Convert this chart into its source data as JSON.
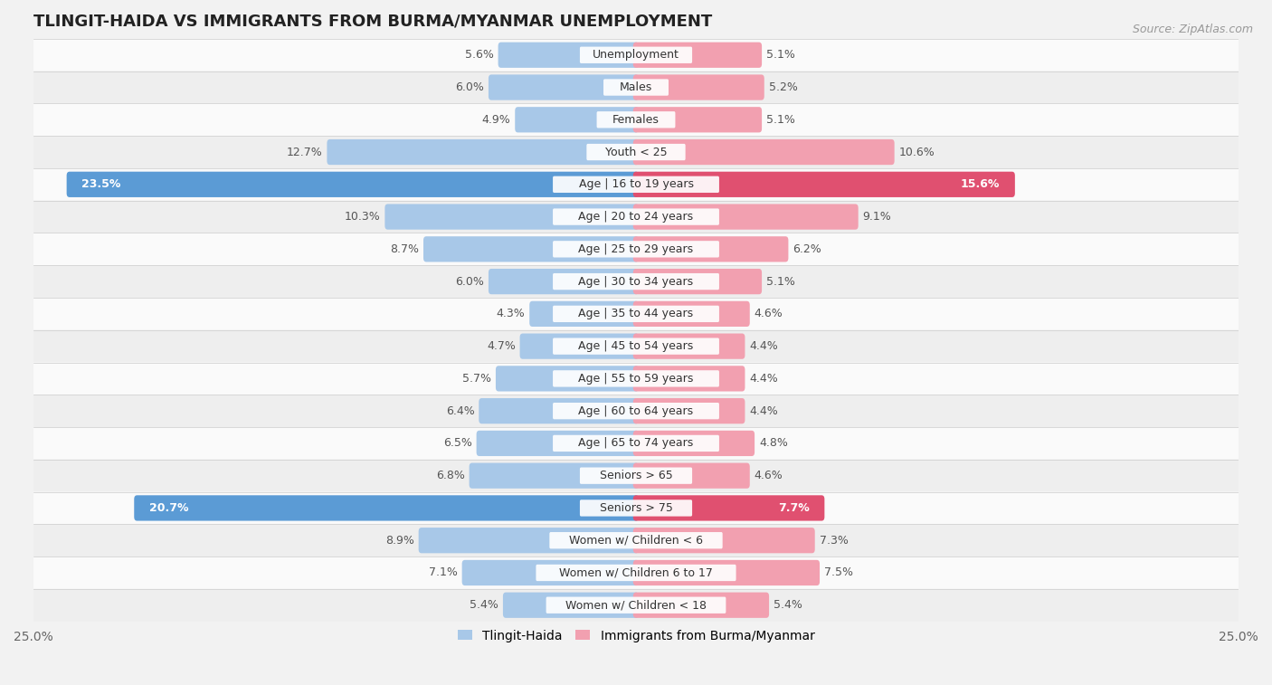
{
  "title": "TLINGIT-HAIDA VS IMMIGRANTS FROM BURMA/MYANMAR UNEMPLOYMENT",
  "source": "Source: ZipAtlas.com",
  "categories": [
    "Unemployment",
    "Males",
    "Females",
    "Youth < 25",
    "Age | 16 to 19 years",
    "Age | 20 to 24 years",
    "Age | 25 to 29 years",
    "Age | 30 to 34 years",
    "Age | 35 to 44 years",
    "Age | 45 to 54 years",
    "Age | 55 to 59 years",
    "Age | 60 to 64 years",
    "Age | 65 to 74 years",
    "Seniors > 65",
    "Seniors > 75",
    "Women w/ Children < 6",
    "Women w/ Children 6 to 17",
    "Women w/ Children < 18"
  ],
  "left_values": [
    5.6,
    6.0,
    4.9,
    12.7,
    23.5,
    10.3,
    8.7,
    6.0,
    4.3,
    4.7,
    5.7,
    6.4,
    6.5,
    6.8,
    20.7,
    8.9,
    7.1,
    5.4
  ],
  "right_values": [
    5.1,
    5.2,
    5.1,
    10.6,
    15.6,
    9.1,
    6.2,
    5.1,
    4.6,
    4.4,
    4.4,
    4.4,
    4.8,
    4.6,
    7.7,
    7.3,
    7.5,
    5.4
  ],
  "left_color": "#a8c8e8",
  "right_color": "#f2a0b0",
  "left_highlight_color": "#5b9bd5",
  "right_highlight_color": "#e05070",
  "highlight_rows": [
    4,
    14
  ],
  "left_label": "Tlingit-Haida",
  "right_label": "Immigrants from Burma/Myanmar",
  "xlim": 25.0,
  "bg_color": "#f2f2f2",
  "row_bg_colors": [
    "#fafafa",
    "#eeeeee"
  ],
  "separator_color": "#cccccc",
  "label_fontsize": 9.0,
  "value_fontsize": 9.0,
  "title_fontsize": 13,
  "source_fontsize": 9
}
